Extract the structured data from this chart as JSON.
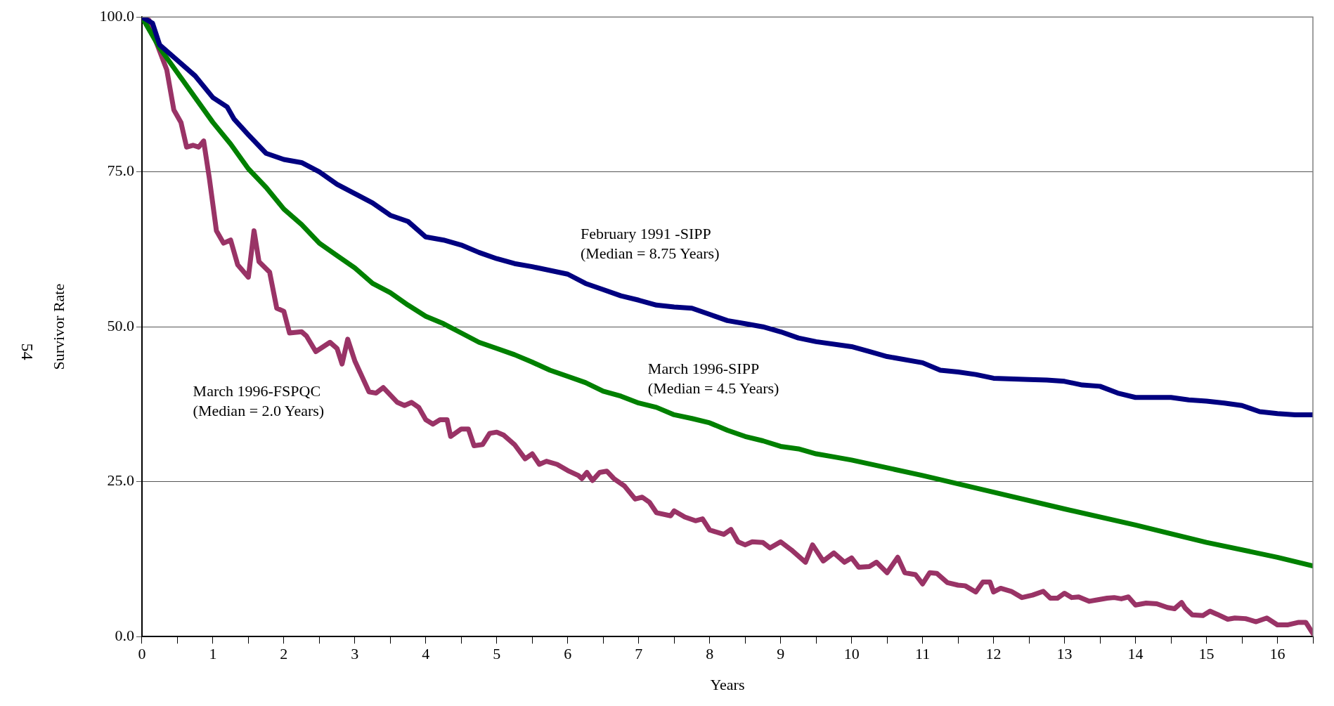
{
  "chart_data": {
    "type": "line",
    "xlabel": "Years",
    "ylabel": "Survivor Rate",
    "xlim": [
      0,
      16.5
    ],
    "xticks": [
      0,
      {
        "value": 0.5,
        "label": null
      },
      1,
      {
        "value": 1.5,
        "label": null
      },
      2,
      {
        "value": 2.5,
        "label": null
      },
      3,
      {
        "value": 3.5,
        "label": null
      },
      4,
      {
        "value": 4.5,
        "label": null
      },
      5,
      {
        "value": 5.5,
        "label": null
      },
      6,
      {
        "value": 6.5,
        "label": null
      },
      7,
      {
        "value": 7.5,
        "label": null
      },
      8,
      {
        "value": 8.5,
        "label": null
      },
      9,
      {
        "value": 9.5,
        "label": null
      },
      10,
      {
        "value": 10.5,
        "label": null
      },
      11,
      {
        "value": 11.5,
        "label": null
      },
      12,
      {
        "value": 12.5,
        "label": null
      },
      13,
      {
        "value": 13.5,
        "label": null
      },
      14,
      {
        "value": 14.5,
        "label": null
      },
      15,
      {
        "value": 15.5,
        "label": null
      },
      16,
      {
        "value": 16.5,
        "label": null
      }
    ],
    "ylim": [
      0,
      100
    ],
    "yticks": [
      {
        "value": 0,
        "label": "0.0"
      },
      {
        "value": 25,
        "label": "25.0"
      },
      {
        "value": 50,
        "label": "50.0"
      },
      {
        "value": 75,
        "label": "75.0"
      },
      {
        "value": 100,
        "label": "100.0"
      }
    ],
    "grid": "y",
    "legend": false,
    "marker": "none",
    "line_style": "solid",
    "series": [
      {
        "name": "February 1991 -SIPP",
        "color": "#000080",
        "x": [
          0,
          0.15,
          0.25,
          0.5,
          0.75,
          1.0,
          1.2,
          1.3,
          1.5,
          1.75,
          2.0,
          2.25,
          2.5,
          2.75,
          3.0,
          3.25,
          3.5,
          3.75,
          4.0,
          4.25,
          4.5,
          4.75,
          5.0,
          5.25,
          5.5,
          6.0,
          6.25,
          6.5,
          6.75,
          7.0,
          7.25,
          7.5,
          7.75,
          8.0,
          8.25,
          8.5,
          8.75,
          9.0,
          9.25,
          9.5,
          10.0,
          10.25,
          10.5,
          11.0,
          11.25,
          11.5,
          11.75,
          12.0,
          12.5,
          12.75,
          13.0,
          13.25,
          13.5,
          13.75,
          14.0,
          14.5,
          14.75,
          15.0,
          15.25,
          15.5,
          15.75,
          16.0,
          16.25,
          16.5
        ],
        "values": [
          100,
          99,
          95.5,
          93,
          90.5,
          87,
          85.5,
          83.5,
          81,
          78,
          77,
          76.5,
          75,
          73,
          71.5,
          70,
          68,
          67,
          64.5,
          64,
          63.2,
          62,
          61,
          60.2,
          59.7,
          58.5,
          57,
          56,
          55,
          54.3,
          53.5,
          53.2,
          53,
          52,
          51,
          50.5,
          50,
          49.2,
          48.2,
          47.6,
          46.8,
          46,
          45.2,
          44.2,
          43,
          42.7,
          42.3,
          41.7,
          41.5,
          41.4,
          41.2,
          40.6,
          40.4,
          39.3,
          38.6,
          38.6,
          38.2,
          38,
          37.7,
          37.3,
          36.3,
          36,
          35.8,
          35.8
        ]
      },
      {
        "name": "March 1996-SIPP",
        "color": "#008000",
        "x": [
          0,
          0.25,
          0.5,
          0.75,
          1.0,
          1.25,
          1.5,
          1.75,
          2.0,
          2.25,
          2.5,
          2.75,
          3.0,
          3.25,
          3.5,
          3.75,
          4.0,
          4.25,
          4.5,
          4.75,
          5.0,
          5.25,
          5.5,
          5.75,
          6.0,
          6.25,
          6.5,
          6.75,
          7.0,
          7.25,
          7.5,
          7.75,
          8.0,
          8.25,
          8.5,
          8.75,
          9.0,
          9.25,
          9.5,
          9.75,
          10.0,
          11.0,
          12.0,
          13.0,
          14.0,
          15.0,
          16.0,
          16.5
        ],
        "values": [
          100,
          95,
          91,
          87,
          83,
          79.5,
          75.5,
          72.5,
          69,
          66.5,
          63.5,
          61.5,
          59.5,
          57,
          55.5,
          53.5,
          51.7,
          50.5,
          49,
          47.5,
          46.5,
          45.5,
          44.3,
          43,
          42,
          41,
          39.6,
          38.8,
          37.7,
          37,
          35.8,
          35.2,
          34.5,
          33.3,
          32.3,
          31.6,
          30.7,
          30.3,
          29.5,
          29,
          28.5,
          26,
          23.3,
          20.6,
          18,
          15.2,
          12.8,
          11.4
        ]
      },
      {
        "name": "March 1996-FSPQC",
        "color": "#993366",
        "x": [
          0,
          0.1,
          0.2,
          0.35,
          0.45,
          0.55,
          0.63,
          0.72,
          0.8,
          0.87,
          0.95,
          1.05,
          1.15,
          1.25,
          1.35,
          1.5,
          1.58,
          1.65,
          1.8,
          1.9,
          2.0,
          2.08,
          2.25,
          2.32,
          2.45,
          2.65,
          2.75,
          2.82,
          2.9,
          3.0,
          3.2,
          3.3,
          3.4,
          3.6,
          3.7,
          3.8,
          3.9,
          4.0,
          4.1,
          4.2,
          4.3,
          4.35,
          4.5,
          4.6,
          4.68,
          4.8,
          4.9,
          5.0,
          5.1,
          5.25,
          5.4,
          5.5,
          5.6,
          5.7,
          5.85,
          6.0,
          6.15,
          6.2,
          6.27,
          6.35,
          6.45,
          6.55,
          6.65,
          6.8,
          6.95,
          7.05,
          7.15,
          7.25,
          7.45,
          7.5,
          7.65,
          7.8,
          7.9,
          8.0,
          8.2,
          8.3,
          8.4,
          8.5,
          8.6,
          8.75,
          8.85,
          9.0,
          9.15,
          9.35,
          9.45,
          9.6,
          9.75,
          9.9,
          10.0,
          10.1,
          10.25,
          10.35,
          10.5,
          10.65,
          10.75,
          10.9,
          11.0,
          11.1,
          11.2,
          11.35,
          11.5,
          11.6,
          11.75,
          11.85,
          11.95,
          12.0,
          12.1,
          12.25,
          12.4,
          12.55,
          12.7,
          12.8,
          12.9,
          13.0,
          13.1,
          13.2,
          13.35,
          13.5,
          13.6,
          13.7,
          13.8,
          13.9,
          14.0,
          14.15,
          14.3,
          14.45,
          14.55,
          14.65,
          14.7,
          14.8,
          14.95,
          15.05,
          15.15,
          15.3,
          15.4,
          15.55,
          15.7,
          15.85,
          16.0,
          16.15,
          16.3,
          16.4,
          16.5
        ],
        "values": [
          100,
          99.5,
          96,
          91.5,
          85,
          83,
          79,
          79.3,
          79,
          80,
          74,
          65.5,
          63.5,
          64,
          60,
          58,
          65.5,
          60.5,
          58.8,
          53,
          52.5,
          49,
          49.2,
          48.5,
          46,
          47.5,
          46.5,
          44,
          48,
          44.5,
          39.5,
          39.3,
          40.2,
          37.8,
          37.3,
          37.8,
          37,
          35,
          34.3,
          35,
          35,
          32.3,
          33.5,
          33.5,
          30.8,
          31,
          32.8,
          33,
          32.5,
          31,
          28.7,
          29.5,
          27.8,
          28.3,
          27.8,
          26.8,
          26,
          25.5,
          26.5,
          25.2,
          26.5,
          26.7,
          25.5,
          24.3,
          22.2,
          22.5,
          21.7,
          20,
          19.5,
          20.3,
          19.3,
          18.7,
          19,
          17.2,
          16.5,
          17.3,
          15.3,
          14.8,
          15.3,
          15.2,
          14.3,
          15.3,
          14,
          12,
          14.8,
          12.2,
          13.5,
          12,
          12.7,
          11.2,
          11.3,
          12,
          10.3,
          12.8,
          10.3,
          10,
          8.5,
          10.3,
          10.2,
          8.7,
          8.3,
          8.2,
          7.2,
          8.8,
          8.8,
          7.2,
          7.8,
          7.3,
          6.3,
          6.7,
          7.3,
          6.2,
          6.2,
          7,
          6.3,
          6.4,
          5.7,
          6,
          6.2,
          6.3,
          6.1,
          6.4,
          5.1,
          5.4,
          5.3,
          4.7,
          4.5,
          5.5,
          4.6,
          3.5,
          3.4,
          4.1,
          3.6,
          2.8,
          3,
          2.9,
          2.4,
          3,
          1.9,
          1.9,
          2.3,
          2.3,
          0.5
        ]
      }
    ],
    "annotations": [
      "(Median = 8.75 Years)",
      "(Median = 4.5 Years)",
      "(Median = 2.0 Years)",
      "54"
    ]
  }
}
